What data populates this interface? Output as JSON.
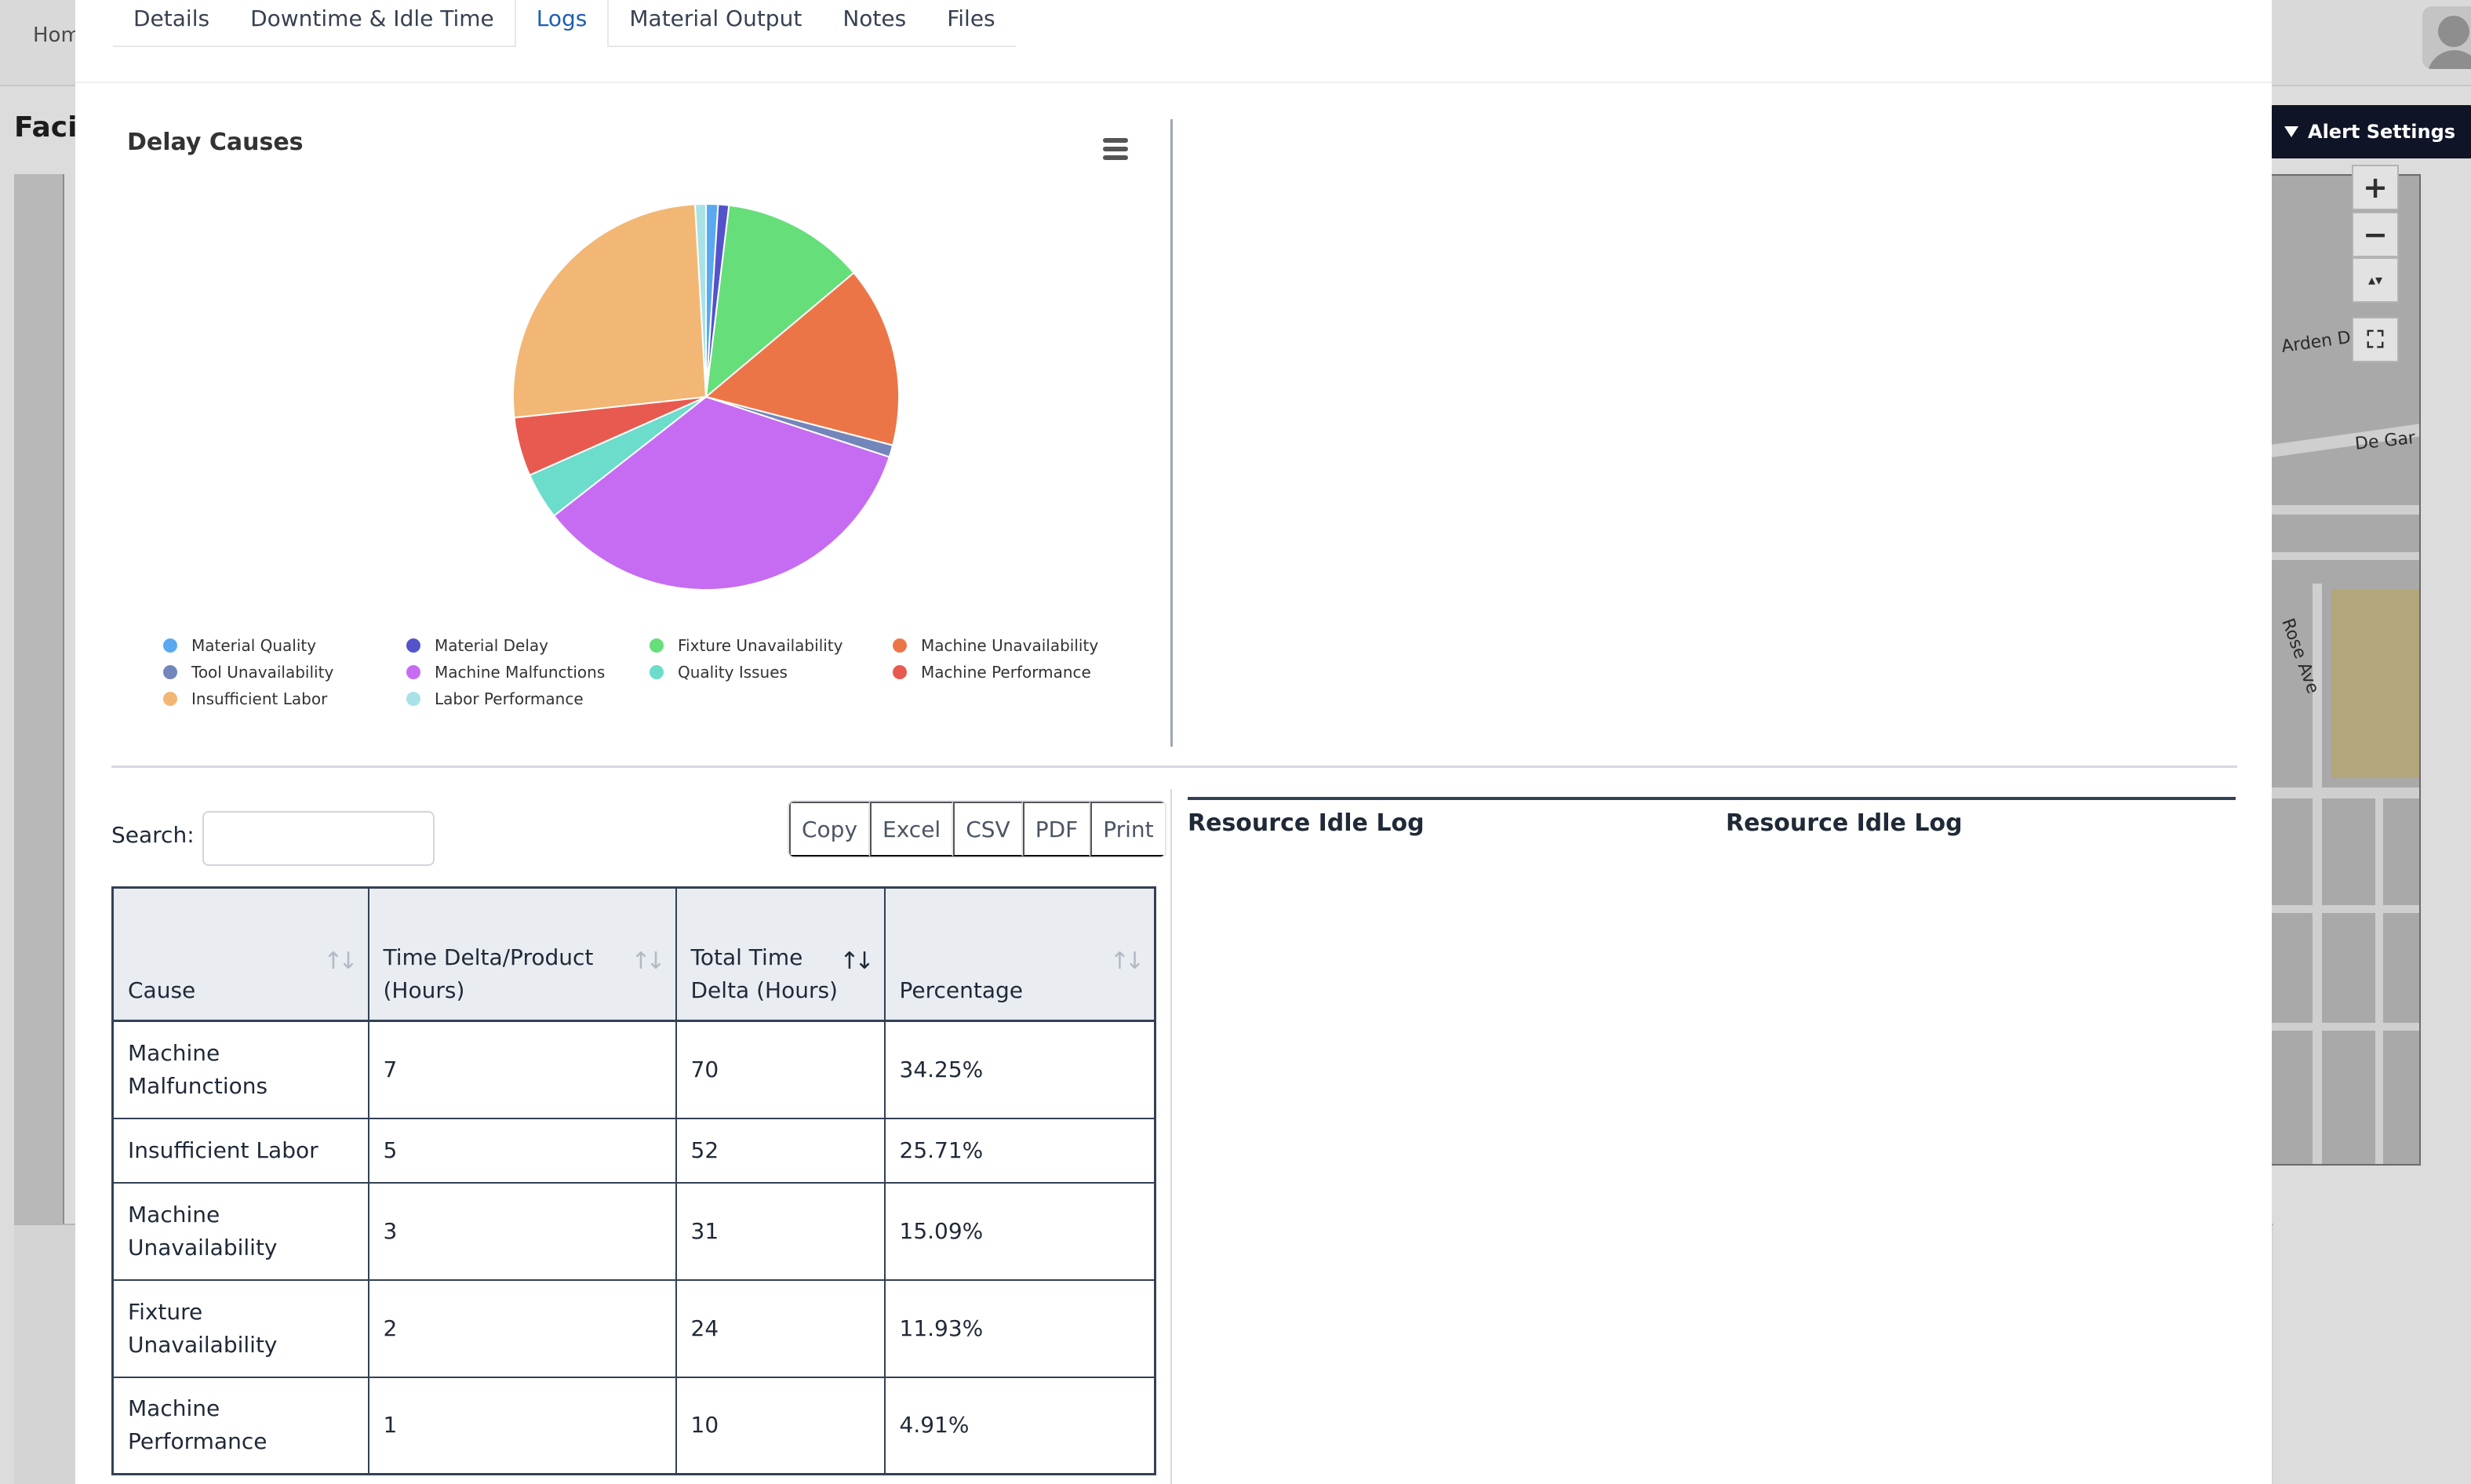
{
  "background": {
    "home_label": "Hom",
    "facility_label": "Facil",
    "alert_settings_label": "Alert Settings",
    "map": {
      "street_labels": [
        "Arden D",
        "De Gar",
        "Rose Ave"
      ],
      "controls": [
        "+",
        "−",
        "▴▾",
        "⛶"
      ]
    }
  },
  "modal": {
    "tabs": [
      {
        "label": "Details"
      },
      {
        "label": "Downtime & Idle Time"
      },
      {
        "label": "Logs",
        "active": true
      },
      {
        "label": "Material Output"
      },
      {
        "label": "Notes"
      },
      {
        "label": "Files"
      }
    ],
    "chart_menu_icon": "hamburger-menu-icon",
    "search": {
      "label": "Search:",
      "value": "",
      "placeholder": ""
    },
    "export_buttons": [
      "Copy",
      "Excel",
      "CSV",
      "PDF",
      "Print"
    ],
    "table": {
      "columns": [
        "Cause",
        "Time Delta/Product (Hours)",
        "Total Time Delta (Hours)",
        "Percentage"
      ],
      "sorted_column": 2,
      "rows": [
        {
          "cause": "Machine Malfunctions",
          "per_product": "7",
          "total": "70",
          "percentage": "34.25%"
        },
        {
          "cause": "Insufficient Labor",
          "per_product": "5",
          "total": "52",
          "percentage": "25.71%"
        },
        {
          "cause": "Machine Unavailability",
          "per_product": "3",
          "total": "31",
          "percentage": "15.09%"
        },
        {
          "cause": "Fixture Unavailability",
          "per_product": "2",
          "total": "24",
          "percentage": "11.93%"
        },
        {
          "cause": "Machine Performance",
          "per_product": "1",
          "total": "10",
          "percentage": "4.91%"
        }
      ]
    },
    "idle_log_titles": [
      "Resource Idle Log",
      "Resource Idle Log"
    ]
  },
  "chart_data": {
    "type": "pie",
    "title": "Delay Causes",
    "slices": [
      {
        "label": "Material Quality",
        "value": 1.0,
        "color": "#5aa9f0",
        "visible_in_pie": false
      },
      {
        "label": "Material Delay",
        "value": 0.9,
        "color": "#5453cb"
      },
      {
        "label": "Fixture Unavailability",
        "value": 11.93,
        "color": "#66de7a"
      },
      {
        "label": "Machine Unavailability",
        "value": 15.09,
        "color": "#ec7547"
      },
      {
        "label": "Tool Unavailability",
        "value": 1.0,
        "color": "#7386bb"
      },
      {
        "label": "Machine Malfunctions",
        "value": 34.25,
        "color": "#c66cf2"
      },
      {
        "label": "Quality Issues",
        "value": 3.9,
        "color": "#6cdccb"
      },
      {
        "label": "Machine Performance",
        "value": 4.91,
        "color": "#e85a4f"
      },
      {
        "label": "Insufficient Labor",
        "value": 25.71,
        "color": "#f2b774"
      },
      {
        "label": "Labor Performance",
        "value": 0.9,
        "color": "#a8e2e6"
      }
    ],
    "legend": [
      "Material Quality",
      "Material Delay",
      "Fixture Unavailability",
      "Machine Unavailability",
      "Tool Unavailability",
      "Machine Malfunctions",
      "Quality Issues",
      "Machine Performance",
      "Insufficient Labor",
      "Labor Performance"
    ],
    "legend_position": "bottom",
    "start_at": "top, clockwise"
  }
}
